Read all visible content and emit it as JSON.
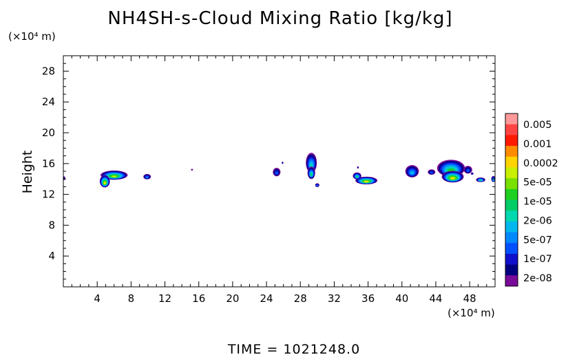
{
  "chart_data": {
    "type": "heatmap",
    "title": "NH4SH-s-Cloud Mixing Ratio [kg/kg]",
    "ylabel": "Height",
    "yunit": "(×10⁴ m)",
    "xunit": "(×10⁴ m)",
    "xlim": [
      0,
      51
    ],
    "ylim": [
      0,
      30
    ],
    "xticks": [
      "4",
      "8",
      "12",
      "16",
      "20",
      "24",
      "28",
      "32",
      "36",
      "40",
      "44",
      "48"
    ],
    "xtick_values": [
      4,
      8,
      12,
      16,
      20,
      24,
      28,
      32,
      36,
      40,
      44,
      48
    ],
    "yticks": [
      "4",
      "8",
      "12",
      "16",
      "20",
      "24",
      "28"
    ],
    "ytick_values": [
      4,
      8,
      12,
      16,
      20,
      24,
      28
    ],
    "colorbar": {
      "labels": [
        "0.005",
        "0.001",
        "0.0002",
        "5e-05",
        "1e-05",
        "2e-06",
        "5e-07",
        "1e-07",
        "2e-08"
      ],
      "colors": [
        "#ff9999",
        "#ff4444",
        "#ff1a00",
        "#ff8c00",
        "#ffd400",
        "#c8f000",
        "#7ae000",
        "#20d020",
        "#00cc66",
        "#00d8b0",
        "#00b8ee",
        "#0088ff",
        "#0050ff",
        "#1010cc",
        "#000080",
        "#7a0a9a"
      ]
    },
    "clouds": [
      {
        "x": 6.0,
        "y": 14.5,
        "w": 3.2,
        "h": 1.2,
        "peak": 0.85
      },
      {
        "x": 4.9,
        "y": 13.7,
        "w": 1.2,
        "h": 1.6,
        "peak": 0.95
      },
      {
        "x": 9.9,
        "y": 14.3,
        "w": 0.9,
        "h": 0.7,
        "peak": 0.35
      },
      {
        "x": 15.2,
        "y": 15.2,
        "w": 0.25,
        "h": 0.2,
        "peak": 0.1
      },
      {
        "x": 25.2,
        "y": 14.9,
        "w": 0.9,
        "h": 1.1,
        "peak": 0.3
      },
      {
        "x": 25.9,
        "y": 16.1,
        "w": 0.2,
        "h": 0.3,
        "peak": 0.3
      },
      {
        "x": 29.3,
        "y": 16.1,
        "w": 1.3,
        "h": 2.6,
        "peak": 0.55
      },
      {
        "x": 29.3,
        "y": 14.8,
        "w": 0.9,
        "h": 1.6,
        "peak": 0.6
      },
      {
        "x": 30.0,
        "y": 13.2,
        "w": 0.5,
        "h": 0.5,
        "peak": 0.4
      },
      {
        "x": 35.8,
        "y": 13.8,
        "w": 2.6,
        "h": 1.0,
        "peak": 0.9
      },
      {
        "x": 34.7,
        "y": 14.4,
        "w": 1.0,
        "h": 0.9,
        "peak": 0.6
      },
      {
        "x": 34.8,
        "y": 15.5,
        "w": 0.2,
        "h": 0.3,
        "peak": 0.2
      },
      {
        "x": 41.2,
        "y": 15.0,
        "w": 1.6,
        "h": 1.6,
        "peak": 0.45
      },
      {
        "x": 43.5,
        "y": 14.9,
        "w": 0.9,
        "h": 0.7,
        "peak": 0.3
      },
      {
        "x": 45.8,
        "y": 15.4,
        "w": 3.3,
        "h": 2.2,
        "peak": 0.7
      },
      {
        "x": 46.0,
        "y": 14.3,
        "w": 2.6,
        "h": 1.5,
        "peak": 0.9
      },
      {
        "x": 47.8,
        "y": 15.2,
        "w": 1.0,
        "h": 1.0,
        "peak": 0.3
      },
      {
        "x": 48.3,
        "y": 14.7,
        "w": 0.3,
        "h": 0.3,
        "peak": 0.3
      },
      {
        "x": 49.3,
        "y": 13.9,
        "w": 1.1,
        "h": 0.6,
        "peak": 0.6
      },
      {
        "x": 50.8,
        "y": 14.0,
        "w": 0.5,
        "h": 0.8,
        "peak": 0.5
      },
      {
        "x": 0.1,
        "y": 14.1,
        "w": 0.25,
        "h": 0.5,
        "peak": 0.25
      }
    ],
    "footer": "TIME = 1021248.0"
  }
}
